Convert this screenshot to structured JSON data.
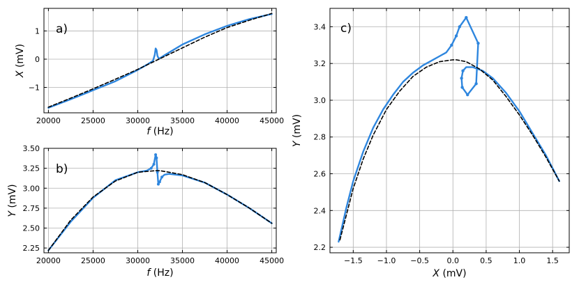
{
  "chart_data": [
    {
      "type": "line",
      "panel_label": "a)",
      "xlabel_sym": "f",
      "xlabel_unit": " (Hz)",
      "ylabel_sym": "X",
      "ylabel_unit": " (mV)",
      "xlim": [
        19500,
        45500
      ],
      "ylim": [
        -1.9,
        1.8
      ],
      "xticks": [
        20000,
        25000,
        30000,
        35000,
        40000,
        45000
      ],
      "xtick_labels": [
        "20000",
        "25000",
        "30000",
        "35000",
        "40000",
        "45000"
      ],
      "yticks": [
        -1,
        0,
        1
      ],
      "ytick_labels": [
        "−1",
        "0",
        "1"
      ],
      "grid": true,
      "series": [
        {
          "style": "measured",
          "color": "#2e86de",
          "x": [
            20000,
            22500,
            25000,
            27500,
            30000,
            31000,
            31700,
            31900,
            32000,
            32100,
            32200,
            32350,
            32500,
            33000,
            35000,
            37500,
            40000,
            42500,
            45000
          ],
          "y": [
            -1.72,
            -1.42,
            -1.1,
            -0.78,
            -0.38,
            -0.2,
            -0.06,
            0.15,
            0.38,
            0.33,
            0.12,
            0.02,
            0.04,
            0.14,
            0.52,
            0.88,
            1.18,
            1.42,
            1.6
          ]
        },
        {
          "style": "model",
          "color": "#000000",
          "x": [
            20000,
            22500,
            25000,
            27500,
            30000,
            32500,
            35000,
            37500,
            40000,
            42500,
            45000
          ],
          "y": [
            -1.7,
            -1.38,
            -1.05,
            -0.71,
            -0.36,
            0.02,
            0.4,
            0.78,
            1.12,
            1.38,
            1.62
          ]
        }
      ]
    },
    {
      "type": "line",
      "panel_label": "b)",
      "xlabel_sym": "f",
      "xlabel_unit": " (Hz)",
      "ylabel_sym": "Y",
      "ylabel_unit": " (mV)",
      "xlim": [
        19500,
        45500
      ],
      "ylim": [
        2.19,
        3.5
      ],
      "xticks": [
        20000,
        25000,
        30000,
        35000,
        40000,
        45000
      ],
      "xtick_labels": [
        "20000",
        "25000",
        "30000",
        "35000",
        "40000",
        "45000"
      ],
      "yticks": [
        2.25,
        2.5,
        2.75,
        3.0,
        3.25,
        3.5
      ],
      "ytick_labels": [
        "2.25",
        "2.50",
        "2.75",
        "3.00",
        "3.25",
        "3.50"
      ],
      "grid": true,
      "series": [
        {
          "style": "measured",
          "color": "#2e86de",
          "x": [
            20000,
            22500,
            25000,
            27500,
            30000,
            31000,
            31500,
            31800,
            32000,
            32100,
            32200,
            32300,
            32450,
            32700,
            33000,
            33500,
            35000,
            37500,
            40000,
            42500,
            45000
          ],
          "y": [
            2.22,
            2.58,
            2.88,
            3.1,
            3.2,
            3.22,
            3.25,
            3.3,
            3.42,
            3.38,
            3.2,
            3.05,
            3.08,
            3.14,
            3.17,
            3.18,
            3.16,
            3.07,
            2.92,
            2.75,
            2.56
          ],
          "marker_indices": [
            6,
            7,
            8,
            9,
            10,
            11,
            12,
            13
          ],
          "marker_size": 2
        },
        {
          "style": "model",
          "color": "#000000",
          "x": [
            20000,
            22500,
            25000,
            27500,
            30000,
            32000,
            32500,
            35000,
            37500,
            40000,
            42500,
            45000
          ],
          "y": [
            2.22,
            2.6,
            2.89,
            3.09,
            3.2,
            3.22,
            3.22,
            3.17,
            3.07,
            2.92,
            2.75,
            2.56
          ]
        }
      ]
    },
    {
      "type": "line",
      "panel_label": "c)",
      "xlabel_sym": "X",
      "xlabel_unit": " (mV)",
      "ylabel_sym": "Y",
      "ylabel_unit": " (mV)",
      "xlim": [
        -1.85,
        1.75
      ],
      "ylim": [
        2.17,
        3.5
      ],
      "xticks": [
        -1.5,
        -1.0,
        -0.5,
        0.0,
        0.5,
        1.0,
        1.5
      ],
      "xtick_labels": [
        "−1.5",
        "−1.0",
        "−0.5",
        "0.0",
        "0.5",
        "1.0",
        "1.5"
      ],
      "yticks": [
        2.2,
        2.4,
        2.6,
        2.8,
        3.0,
        3.2,
        3.4
      ],
      "ytick_labels": [
        "2.2",
        "2.4",
        "2.6",
        "2.8",
        "3.0",
        "3.2",
        "3.4"
      ],
      "grid": true,
      "series": [
        {
          "style": "measured",
          "color": "#2e86de",
          "x": [
            -1.72,
            -1.6,
            -1.5,
            -1.35,
            -1.2,
            -1.05,
            -0.9,
            -0.75,
            -0.6,
            -0.45,
            -0.3,
            -0.2,
            -0.1,
            -0.02,
            0.05,
            0.1,
            0.2,
            0.38,
            0.35,
            0.22,
            0.14,
            0.13,
            0.15,
            0.2,
            0.3,
            0.45,
            0.6,
            0.8,
            1.0,
            1.2,
            1.4,
            1.5,
            1.6
          ],
          "y": [
            2.23,
            2.42,
            2.56,
            2.72,
            2.85,
            2.95,
            3.03,
            3.1,
            3.15,
            3.19,
            3.22,
            3.24,
            3.26,
            3.3,
            3.35,
            3.4,
            3.45,
            3.31,
            3.09,
            3.03,
            3.07,
            3.12,
            3.16,
            3.18,
            3.18,
            3.16,
            3.12,
            3.04,
            2.94,
            2.82,
            2.7,
            2.63,
            2.56
          ],
          "marker_indices": [
            13,
            14,
            15,
            16,
            17,
            18,
            19,
            20,
            21,
            22
          ],
          "marker_size": 2.2
        },
        {
          "style": "model",
          "color": "#000000",
          "x": [
            -1.7,
            -1.6,
            -1.5,
            -1.35,
            -1.2,
            -1.0,
            -0.8,
            -0.6,
            -0.4,
            -0.2,
            0.0,
            0.05,
            0.2,
            0.4,
            0.6,
            0.8,
            1.0,
            1.2,
            1.4,
            1.6
          ],
          "y": [
            2.24,
            2.38,
            2.52,
            2.68,
            2.81,
            2.95,
            3.05,
            3.13,
            3.18,
            3.21,
            3.22,
            3.22,
            3.21,
            3.17,
            3.11,
            3.02,
            2.92,
            2.81,
            2.69,
            2.56
          ]
        }
      ]
    }
  ]
}
